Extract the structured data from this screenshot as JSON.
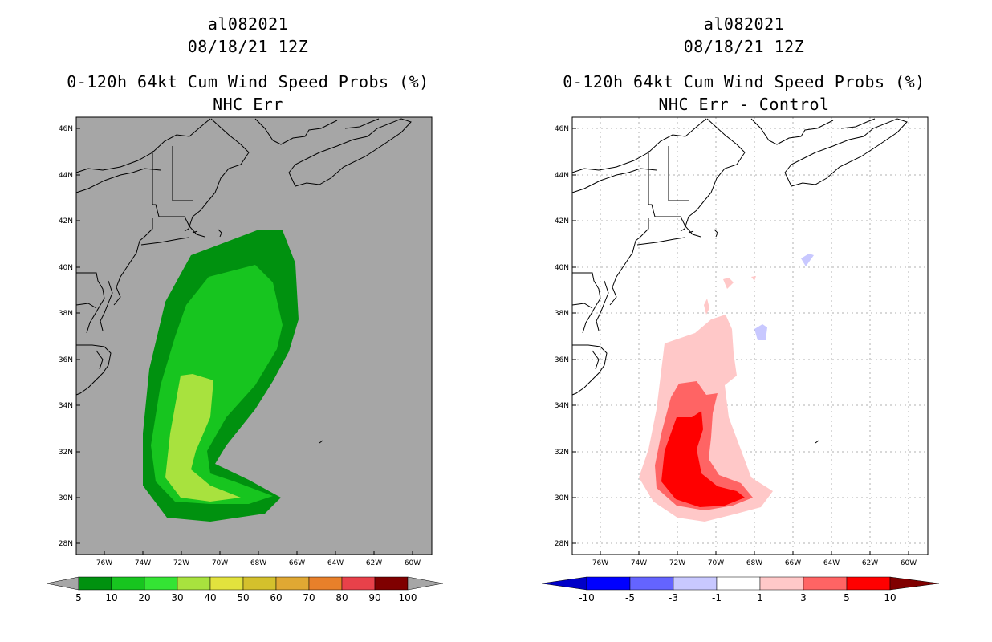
{
  "panels": [
    {
      "storm_id": "al082021",
      "datetime": "08/18/21 12Z",
      "product": "0-120h 64kt Cum Wind Speed Probs (%)",
      "subtitle": "NHC Err",
      "lat_labels": [
        "46N",
        "44N",
        "42N",
        "40N",
        "38N",
        "36N",
        "34N",
        "32N",
        "30N",
        "28N"
      ],
      "lon_labels": [
        "76W",
        "74W",
        "72W",
        "70W",
        "68W",
        "66W",
        "64W",
        "62W",
        "60W"
      ],
      "colorbar": {
        "labels": [
          "5",
          "10",
          "20",
          "30",
          "40",
          "50",
          "60",
          "70",
          "80",
          "90",
          "100"
        ],
        "colors": [
          "#00910f",
          "#17c51f",
          "#34e434",
          "#a8e23e",
          "#e2e23d",
          "#d4c02c",
          "#e0a833",
          "#e8802a",
          "#e8414a",
          "#7f0000",
          "#7a12d4"
        ],
        "arrow_color": "#a6a6a6"
      }
    },
    {
      "storm_id": "al082021",
      "datetime": "08/18/21 12Z",
      "product": "0-120h 64kt Cum Wind Speed Probs (%)",
      "subtitle": "NHC Err - Control",
      "lat_labels": [
        "46N",
        "44N",
        "42N",
        "40N",
        "38N",
        "36N",
        "34N",
        "32N",
        "30N",
        "28N"
      ],
      "lon_labels": [
        "76W",
        "74W",
        "72W",
        "70W",
        "68W",
        "66W",
        "64W",
        "62W",
        "60W"
      ],
      "colorbar": {
        "labels": [
          "-10",
          "-5",
          "-3",
          "-1",
          "1",
          "3",
          "5",
          "10"
        ],
        "colors": [
          "#0000c8",
          "#0000ff",
          "#6464ff",
          "#c8c8ff",
          "#ffffff",
          "#ffc8c8",
          "#ff6464",
          "#ff0000",
          "#800000"
        ]
      }
    }
  ]
}
